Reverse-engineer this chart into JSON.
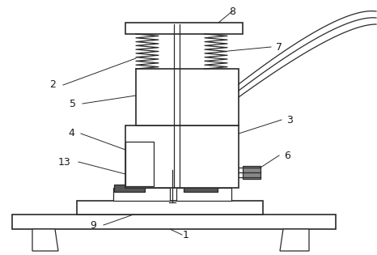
{
  "bg_color": "#ffffff",
  "line_color": "#2a2a2a",
  "figsize": [
    4.66,
    3.15
  ],
  "dpi": 100,
  "font_size": 9,
  "label_color": "#1a1a1a"
}
